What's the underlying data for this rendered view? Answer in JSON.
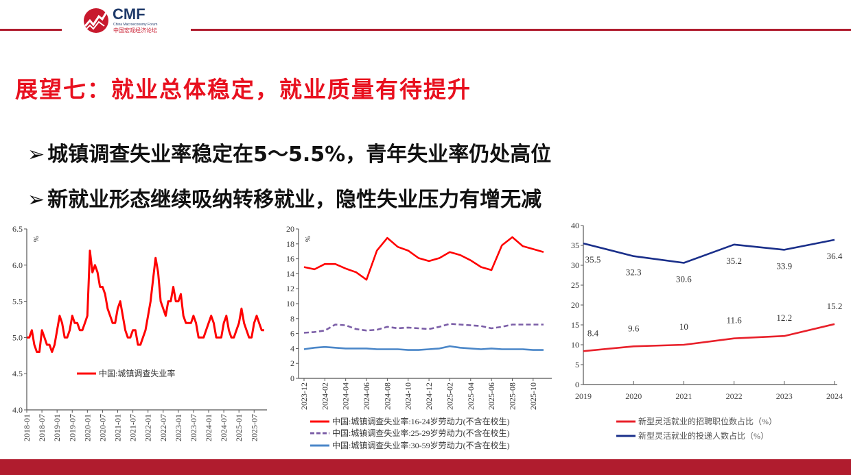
{
  "header": {
    "logo_text": "CMF",
    "logo_subtitle": "China Macroeconomy Forum",
    "logo_cn": "中国宏观经济论坛",
    "accent_color": "#b01c2e"
  },
  "title": "展望七：就业总体稳定，就业质量有待提升",
  "bullets": [
    {
      "marker": "➢",
      "text": "城镇调查失业率稳定在5～5.5%，青年失业率仍处高位"
    },
    {
      "marker": "➢",
      "text": "新就业形态继续吸纳转移就业，隐性失业压力有增无减"
    }
  ],
  "chart_data": [
    {
      "type": "line",
      "ylabel": "%",
      "ylim": [
        4.0,
        6.5
      ],
      "yticks": [
        "4.0",
        "4.5",
        "5.0",
        "5.5",
        "6.0",
        "6.5"
      ],
      "xticks": [
        "2018-01",
        "2018-07",
        "2019-01",
        "2019-07",
        "2020-01",
        "2020-07",
        "2021-01",
        "2021-07",
        "2022-01",
        "2022-07",
        "2023-01",
        "2023-07",
        "2024-01",
        "2024-07",
        "2025-01",
        "2025-07"
      ],
      "x_start": "2018-01",
      "x_end": "2025-11",
      "legend_placement": "center",
      "series": [
        {
          "name": "中国:城镇调查失业率",
          "color": "#ff0000",
          "style": "solid",
          "values": [
            5.0,
            5.0,
            5.1,
            4.9,
            4.8,
            4.8,
            5.1,
            5.0,
            4.9,
            4.9,
            4.8,
            4.9,
            5.1,
            5.3,
            5.2,
            5.0,
            5.0,
            5.1,
            5.3,
            5.2,
            5.2,
            5.1,
            5.1,
            5.2,
            5.3,
            6.2,
            5.9,
            6.0,
            5.9,
            5.7,
            5.7,
            5.6,
            5.4,
            5.3,
            5.2,
            5.2,
            5.4,
            5.5,
            5.3,
            5.1,
            5.0,
            5.0,
            5.1,
            5.1,
            4.9,
            4.9,
            5.0,
            5.1,
            5.3,
            5.5,
            5.8,
            6.1,
            5.9,
            5.5,
            5.4,
            5.3,
            5.5,
            5.5,
            5.7,
            5.5,
            5.5,
            5.6,
            5.3,
            5.2,
            5.2,
            5.2,
            5.3,
            5.2,
            5.0,
            5.0,
            5.0,
            5.1,
            5.2,
            5.3,
            5.2,
            5.0,
            5.0,
            5.0,
            5.2,
            5.3,
            5.1,
            5.0,
            5.0,
            5.1,
            5.2,
            5.4,
            5.2,
            5.1,
            5.0,
            5.0,
            5.2,
            5.3,
            5.2,
            5.1,
            5.1
          ]
        }
      ]
    },
    {
      "type": "line",
      "ylabel": "%",
      "ylim": [
        0,
        20
      ],
      "yticks": [
        "0",
        "2",
        "4",
        "6",
        "8",
        "10",
        "12",
        "14",
        "16",
        "18",
        "20"
      ],
      "xticks": [
        "2023-12",
        "2024-02",
        "2024-04",
        "2024-06",
        "2024-08",
        "2024-10",
        "2024-12",
        "2025-02",
        "2025-04",
        "2025-06",
        "2025-08",
        "2025-10"
      ],
      "x_start": "2023-12",
      "x_end": "2025-11",
      "legend_placement": "bottom",
      "series": [
        {
          "name": "中国:城镇调查失业率:16-24岁劳动力(不含在校生)",
          "color": "#ff0000",
          "style": "solid",
          "values": [
            14.9,
            14.6,
            15.3,
            15.3,
            14.7,
            14.2,
            13.2,
            17.1,
            18.8,
            17.6,
            17.1,
            16.1,
            15.7,
            16.1,
            16.9,
            16.5,
            15.8,
            14.9,
            14.5,
            17.8,
            18.9,
            17.7,
            17.3,
            16.9
          ]
        },
        {
          "name": "中国:城镇调查失业率:25-29岁劳动力(不含在校生)",
          "color": "#7b5ea7",
          "style": "dashed",
          "values": [
            6.1,
            6.2,
            6.4,
            7.2,
            7.1,
            6.6,
            6.4,
            6.5,
            6.9,
            6.7,
            6.8,
            6.7,
            6.6,
            6.9,
            7.3,
            7.2,
            7.1,
            7.0,
            6.7,
            6.9,
            7.2,
            7.2,
            7.2,
            7.2
          ]
        },
        {
          "name": "中国:城镇调查失业率:30-59岁劳动力(不含在校生)",
          "color": "#4a86c8",
          "style": "solid",
          "values": [
            3.9,
            4.1,
            4.2,
            4.1,
            4.0,
            4.0,
            4.0,
            3.9,
            3.9,
            3.9,
            3.8,
            3.8,
            3.9,
            4.0,
            4.3,
            4.1,
            4.0,
            3.9,
            4.0,
            3.9,
            3.9,
            3.9,
            3.8,
            3.8
          ]
        }
      ]
    },
    {
      "type": "line",
      "ylim": [
        0,
        40
      ],
      "yticks": [
        "0",
        "5",
        "10",
        "15",
        "20",
        "25",
        "30",
        "35",
        "40"
      ],
      "categories": [
        "2019",
        "2020",
        "2021",
        "2022",
        "2023",
        "2024"
      ],
      "legend_placement": "bottom",
      "series": [
        {
          "name": "新型灵活就业的招聘职位数占比（%）",
          "color": "#e8202a",
          "style": "solid",
          "values": [
            8.4,
            9.6,
            10,
            11.6,
            12.2,
            15.2
          ],
          "labels": [
            "8.4",
            "9.6",
            "10",
            "11.6",
            "12.2",
            "15.2"
          ]
        },
        {
          "name": "新型灵活就业的投递人数占比（%）",
          "color": "#1a2f8a",
          "style": "solid",
          "values": [
            35.5,
            32.3,
            30.6,
            35.2,
            33.9,
            36.4
          ],
          "labels": [
            "35.5",
            "32.3",
            "30.6",
            "35.2",
            "33.9",
            "36.4"
          ]
        }
      ]
    }
  ]
}
